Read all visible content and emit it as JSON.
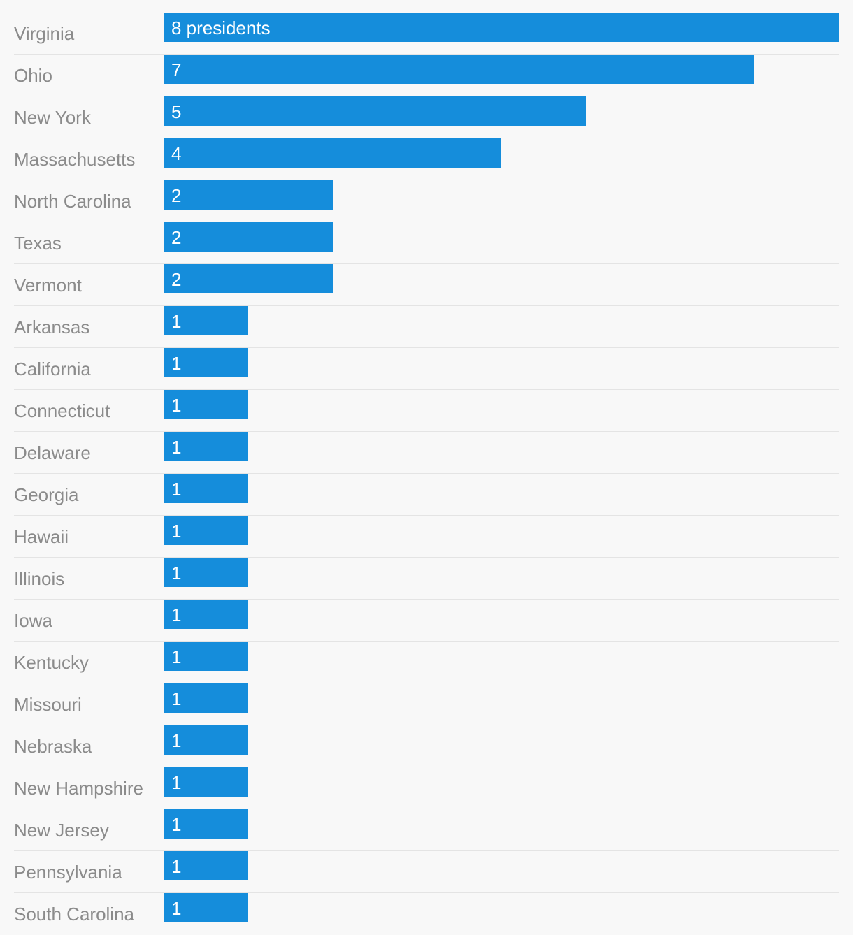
{
  "chart_data": {
    "type": "bar",
    "orientation": "horizontal",
    "categories": [
      "Virginia",
      "Ohio",
      "New York",
      "Massachusetts",
      "North Carolina",
      "Texas",
      "Vermont",
      "Arkansas",
      "California",
      "Connecticut",
      "Delaware",
      "Georgia",
      "Hawaii",
      "Illinois",
      "Iowa",
      "Kentucky",
      "Missouri",
      "Nebraska",
      "New Hampshire",
      "New Jersey",
      "Pennsylvania",
      "South Carolina"
    ],
    "values": [
      8,
      7,
      5,
      4,
      2,
      2,
      2,
      1,
      1,
      1,
      1,
      1,
      1,
      1,
      1,
      1,
      1,
      1,
      1,
      1,
      1,
      1
    ],
    "value_labels": [
      "8 presidents",
      "7",
      "5",
      "4",
      "2",
      "2",
      "2",
      "1",
      "1",
      "1",
      "1",
      "1",
      "1",
      "1",
      "1",
      "1",
      "1",
      "1",
      "1",
      "1",
      "1",
      "1"
    ],
    "xlim": [
      0,
      8
    ],
    "bar_color": "#158ddb",
    "label_color": "#8b8b8b",
    "grid": false
  }
}
